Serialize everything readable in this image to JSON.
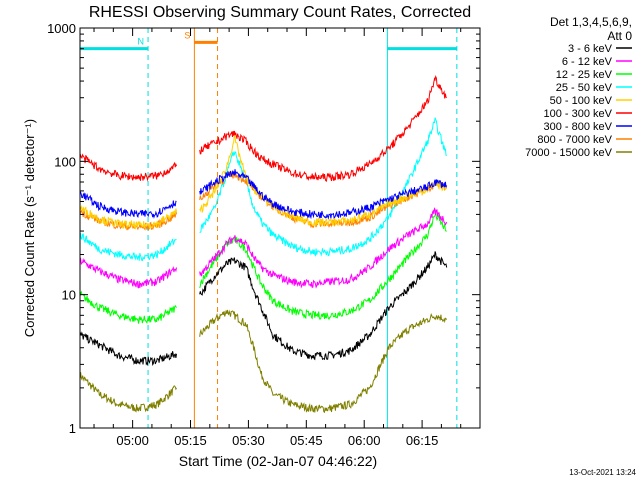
{
  "chart_data": {
    "type": "line",
    "title": "RHESSI Observing Summary Count Rates, Corrected",
    "xlabel": "Start Time (02-Jan-07 04:46:22)",
    "ylabel": "Corrected Count Rate (s⁻¹ detector⁻¹)",
    "yscale": "log",
    "ylim": [
      1,
      1000
    ],
    "xlim": [
      "04:46:22",
      "06:30:00"
    ],
    "x_ticks": [
      "05:00",
      "05:15",
      "05:30",
      "05:45",
      "06:00",
      "06:15"
    ],
    "y_ticks": [
      "1",
      "10",
      "100",
      "1000"
    ],
    "grid": false,
    "legend_position": "right",
    "legend_header": [
      "Det 1,3,4,5,6,9,",
      "Att 0"
    ],
    "footer": "13-Oct-2021 13:24",
    "flags": [
      {
        "label": "N",
        "color": "#00e0e0",
        "intervals": [
          [
            "04:46:22",
            "05:04:00"
          ],
          [
            "06:06:00",
            "06:24:00"
          ]
        ],
        "level": 700
      },
      {
        "label": "S",
        "color": "#ff8000",
        "intervals": [
          [
            "05:16:00",
            "05:22:00"
          ]
        ],
        "level": 780
      }
    ],
    "markers": [
      {
        "time": "05:04:00",
        "color": "#00e0e0",
        "style": "dashed"
      },
      {
        "time": "05:16:00",
        "color": "#ff8000",
        "style": "solid"
      },
      {
        "time": "05:22:00",
        "color": "#ff8000",
        "style": "dashed"
      },
      {
        "time": "06:06:00",
        "color": "#00e0e0",
        "style": "solid"
      },
      {
        "time": "06:24:00",
        "color": "#00e0e0",
        "style": "dashed"
      }
    ],
    "x_minutes_after_0446": [
      0,
      5,
      10,
      15,
      20,
      25,
      28,
      30,
      31,
      35,
      38,
      40,
      43,
      45,
      47,
      50,
      55,
      60,
      65,
      70,
      75,
      80,
      85,
      90,
      92,
      95
    ],
    "series": [
      {
        "name": "3 - 6 keV",
        "color": "#000000",
        "values": [
          5,
          4.2,
          3.5,
          3.2,
          3.2,
          3.6,
          null,
          null,
          10,
          14,
          17,
          18,
          16,
          11,
          8,
          5,
          3.8,
          3.5,
          3.5,
          3.8,
          5,
          8,
          11,
          16,
          20,
          16
        ]
      },
      {
        "name": "6 - 12 keV",
        "color": "#ff00ff",
        "values": [
          18,
          15,
          13,
          12,
          12.5,
          16,
          null,
          null,
          14,
          19,
          24,
          27,
          24,
          19,
          16,
          14,
          12.5,
          12,
          12.5,
          13,
          16,
          22,
          28,
          34,
          42,
          35
        ]
      },
      {
        "name": "12 - 25 keV",
        "color": "#00ff00",
        "values": [
          10,
          8,
          7,
          6.5,
          6.5,
          8,
          null,
          null,
          12,
          18,
          24,
          26,
          22,
          16,
          12,
          9,
          7.5,
          7,
          7,
          7.5,
          9,
          13,
          19,
          28,
          40,
          30
        ]
      },
      {
        "name": "25 - 50 keV",
        "color": "#00ffff",
        "values": [
          28,
          22,
          20,
          19,
          20,
          26,
          null,
          null,
          30,
          45,
          80,
          120,
          70,
          45,
          35,
          28,
          23,
          21,
          21,
          22,
          26,
          38,
          70,
          140,
          200,
          110
        ]
      },
      {
        "name": "50 - 100 keV",
        "color": "#ffd000",
        "values": [
          45,
          37,
          34,
          33,
          34,
          42,
          null,
          null,
          42,
          60,
          90,
          150,
          75,
          62,
          55,
          46,
          38,
          35,
          35,
          36,
          40,
          48,
          55,
          62,
          68,
          62
        ]
      },
      {
        "name": "100 - 300 keV",
        "color": "#ff0000",
        "values": [
          110,
          88,
          78,
          76,
          78,
          92,
          null,
          null,
          120,
          138,
          155,
          162,
          140,
          120,
          105,
          95,
          82,
          76,
          76,
          80,
          95,
          125,
          180,
          280,
          420,
          300
        ]
      },
      {
        "name": "300 - 800 keV",
        "color": "#0000ff",
        "values": [
          58,
          46,
          42,
          40,
          41,
          50,
          null,
          null,
          58,
          70,
          78,
          82,
          75,
          65,
          56,
          48,
          42,
          40,
          40,
          41,
          45,
          52,
          58,
          64,
          70,
          66
        ]
      },
      {
        "name": "800 - 7000 keV",
        "color": "#ff8000",
        "values": [
          42,
          36,
          33,
          32,
          33,
          40,
          null,
          null,
          52,
          66,
          76,
          80,
          72,
          62,
          54,
          46,
          38,
          34,
          34,
          35,
          38,
          46,
          54,
          62,
          68,
          64
        ]
      },
      {
        "name": "7000 - 15000 keV",
        "color": "#808000",
        "values": [
          2.5,
          1.8,
          1.5,
          1.4,
          1.5,
          2,
          null,
          null,
          5,
          6.5,
          7.5,
          7,
          6,
          4,
          2.5,
          1.8,
          1.5,
          1.4,
          1.4,
          1.5,
          2,
          4,
          5.5,
          6.5,
          7,
          6.5
        ]
      }
    ]
  }
}
